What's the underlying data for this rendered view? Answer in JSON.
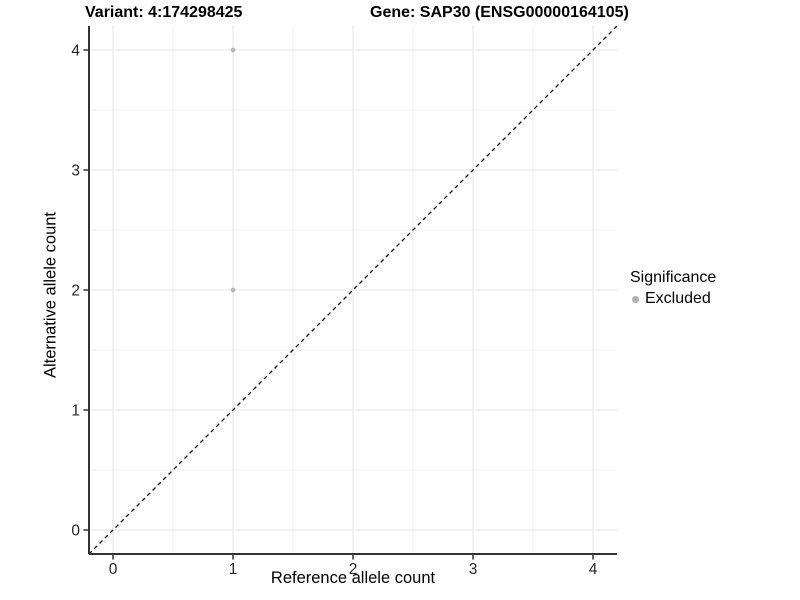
{
  "titles": {
    "variant": "Variant: 4:174298425",
    "gene": "Gene: SAP30 (ENSG00000164105)"
  },
  "chart_data": {
    "type": "scatter",
    "xlabel": "Reference allele count",
    "ylabel": "Alternative allele count",
    "xlim": [
      -0.2,
      4.2
    ],
    "ylim": [
      -0.2,
      4.2
    ],
    "xticks": [
      0,
      1,
      2,
      3,
      4
    ],
    "yticks": [
      0,
      1,
      2,
      3,
      4
    ],
    "minor_ticks": [
      0.5,
      1.5,
      2.5,
      3.5
    ],
    "grid": true,
    "identity_line": {
      "style": "dashed",
      "color": "#000000",
      "from": [
        -0.2,
        -0.2
      ],
      "to": [
        4.2,
        4.2
      ]
    },
    "series": [
      {
        "name": "Excluded",
        "color": "#b5b5b5",
        "points": [
          {
            "x": 1,
            "y": 4
          },
          {
            "x": 1,
            "y": 2
          }
        ]
      }
    ],
    "legend": {
      "title": "Significance",
      "position": "right",
      "items": [
        {
          "label": "Excluded",
          "color": "#b0b0b0"
        }
      ]
    },
    "colors": {
      "grid_major": "#e4e4e4",
      "grid_minor": "#f1f1f1",
      "axis": "#333333",
      "tick_label": "#262626"
    }
  }
}
